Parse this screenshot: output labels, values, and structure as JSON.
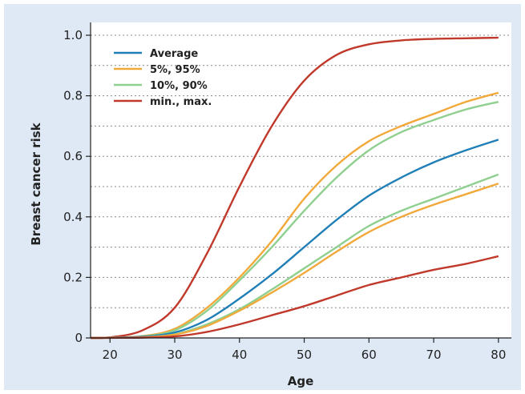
{
  "chart_data": {
    "type": "line",
    "xlabel": "Age",
    "ylabel": "Breast cancer risk",
    "xlim": [
      17,
      82
    ],
    "ylim": [
      0,
      1.0
    ],
    "xticks": [
      20,
      30,
      40,
      50,
      60,
      70,
      80
    ],
    "yticks": [
      0,
      0.2,
      0.4,
      0.6,
      0.8,
      1.0
    ],
    "ytick_labels": [
      "0",
      "0.2",
      "0.4",
      "0.6",
      "0.8",
      "1.0"
    ],
    "grid": "horizontal dotted",
    "legend_position": "top-left",
    "x": [
      17,
      20,
      25,
      30,
      35,
      40,
      45,
      50,
      55,
      60,
      65,
      70,
      75,
      80
    ],
    "series": [
      {
        "name": "max.",
        "color": "#c0392b",
        "legend": false,
        "values": [
          0,
          0.002,
          0.025,
          0.1,
          0.28,
          0.5,
          0.7,
          0.85,
          0.935,
          0.97,
          0.983,
          0.988,
          0.99,
          0.992
        ]
      },
      {
        "name": "95%",
        "color": "#f2a93b",
        "legend": false,
        "values": [
          0,
          0.001,
          0.006,
          0.03,
          0.1,
          0.2,
          0.32,
          0.46,
          0.57,
          0.65,
          0.7,
          0.74,
          0.78,
          0.81
        ]
      },
      {
        "name": "90%",
        "color": "#8fcf8f",
        "legend": false,
        "values": [
          0,
          0.001,
          0.005,
          0.025,
          0.09,
          0.19,
          0.3,
          0.42,
          0.53,
          0.62,
          0.68,
          0.72,
          0.755,
          0.78
        ]
      },
      {
        "name": "Average",
        "color": "#1f7fb6",
        "legend": true,
        "values": [
          0,
          0.001,
          0.004,
          0.018,
          0.06,
          0.13,
          0.21,
          0.3,
          0.39,
          0.47,
          0.53,
          0.58,
          0.62,
          0.655
        ]
      },
      {
        "name": "10%",
        "color": "#8fcf8f",
        "legend": false,
        "values": [
          0,
          0.0005,
          0.002,
          0.012,
          0.045,
          0.095,
          0.16,
          0.23,
          0.3,
          0.37,
          0.42,
          0.46,
          0.5,
          0.54
        ]
      },
      {
        "name": "5%",
        "color": "#f2a93b",
        "legend": false,
        "values": [
          0,
          0.0005,
          0.002,
          0.011,
          0.04,
          0.09,
          0.15,
          0.215,
          0.285,
          0.35,
          0.4,
          0.44,
          0.475,
          0.51
        ]
      },
      {
        "name": "min.",
        "color": "#c0392b",
        "legend": false,
        "values": [
          0,
          0.0003,
          0.001,
          0.005,
          0.02,
          0.045,
          0.075,
          0.105,
          0.14,
          0.175,
          0.2,
          0.225,
          0.245,
          0.27
        ]
      }
    ],
    "legend": [
      {
        "label": "Average",
        "color": "#1f7fb6"
      },
      {
        "label": "5%, 95%",
        "color": "#f2a93b"
      },
      {
        "label": "10%, 90%",
        "color": "#8fcf8f"
      },
      {
        "label": "min., max.",
        "color": "#c0392b"
      }
    ]
  }
}
